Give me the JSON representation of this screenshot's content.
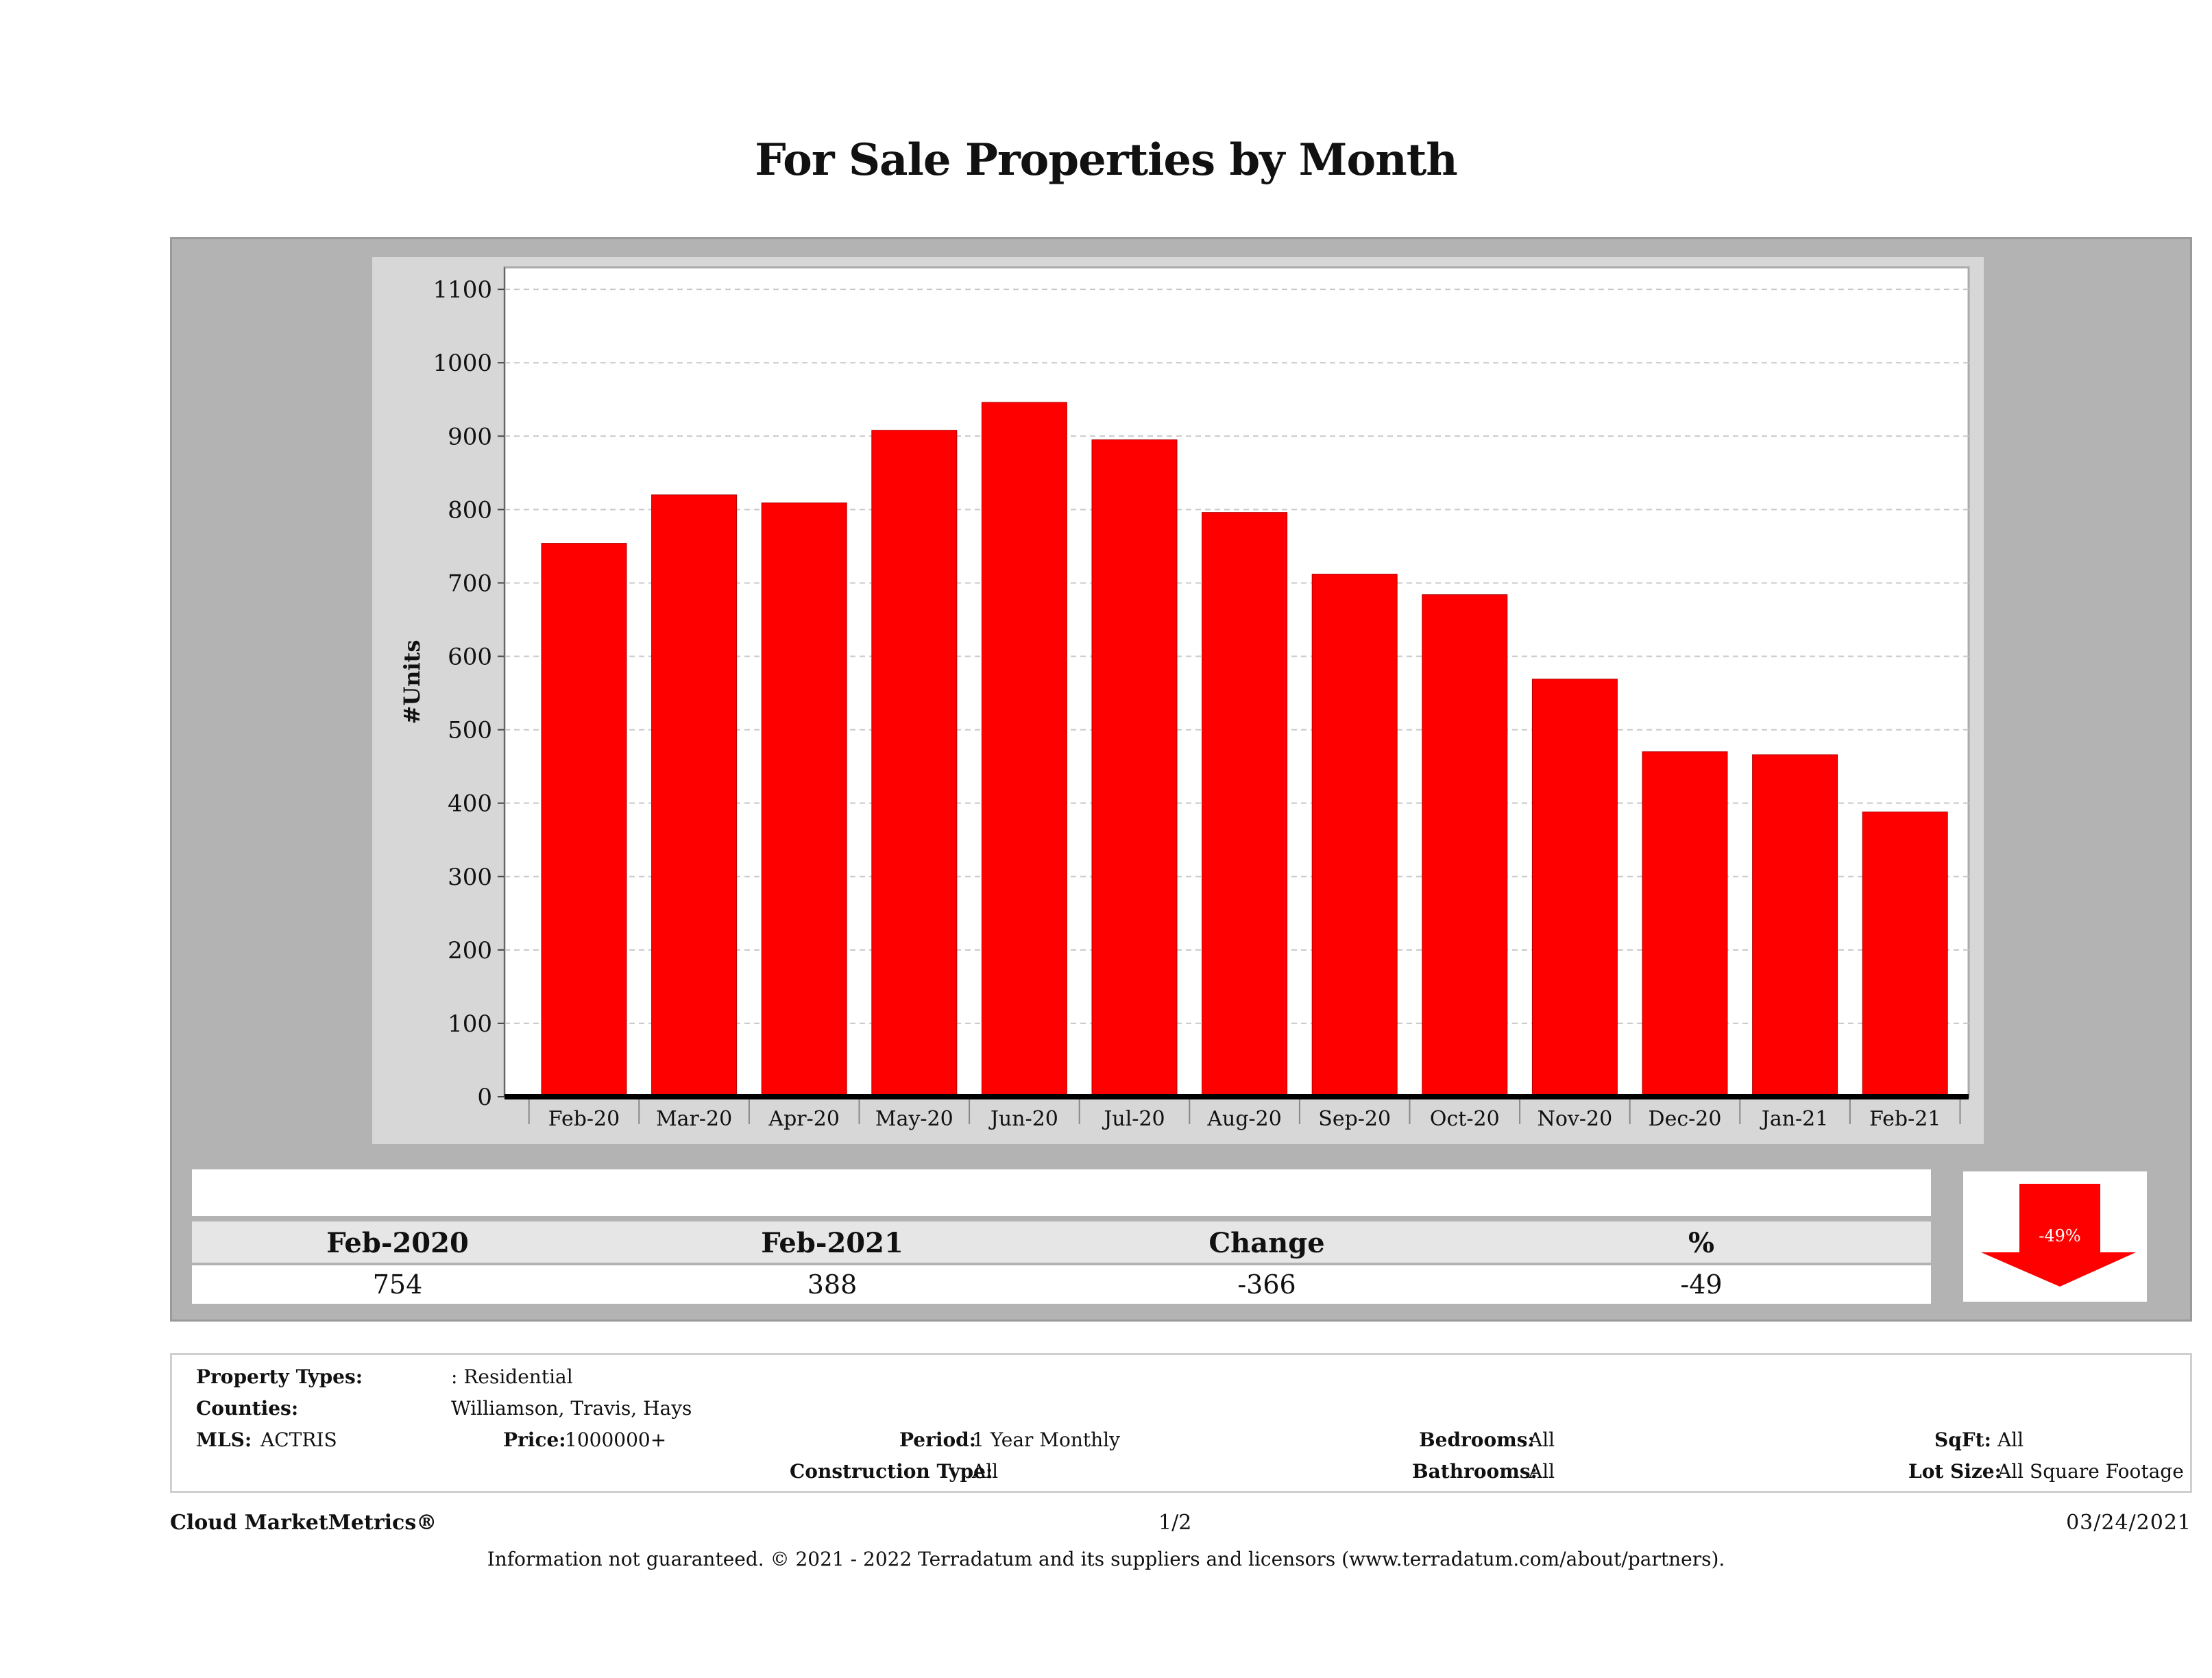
{
  "title": "For Sale Properties by Month",
  "chart_data": {
    "type": "bar",
    "categories": [
      "Feb-20",
      "Mar-20",
      "Apr-20",
      "May-20",
      "Jun-20",
      "Jul-20",
      "Aug-20",
      "Sep-20",
      "Oct-20",
      "Nov-20",
      "Dec-20",
      "Jan-21",
      "Feb-21"
    ],
    "values": [
      754,
      820,
      809,
      908,
      946,
      895,
      796,
      712,
      684,
      569,
      470,
      466,
      388
    ],
    "ylabel": "#Units",
    "xlabel": "",
    "ylim": [
      0,
      1130
    ],
    "yticks": [
      0,
      100,
      200,
      300,
      400,
      500,
      600,
      700,
      800,
      900,
      1000,
      1100
    ],
    "grid": true,
    "bar_color": "#ff0000"
  },
  "summary": {
    "headers": [
      "Feb-2020",
      "Feb-2021",
      "Change",
      "%"
    ],
    "values": [
      "754",
      "388",
      "-366",
      "-49"
    ],
    "arrow_label": "-49%",
    "arrow_color": "#ff0000"
  },
  "details": {
    "property_types_label": "Property Types:",
    "property_types_value": ": Residential",
    "counties_label": "Counties:",
    "counties_value": "Williamson, Travis, Hays",
    "mls_label": "MLS:",
    "mls_value": "ACTRIS",
    "price_label": "Price:",
    "price_value": "1000000+",
    "period_label": "Period:",
    "period_value": "1 Year Monthly",
    "construction_label": "Construction Type:",
    "construction_value": "All",
    "bedrooms_label": "Bedrooms:",
    "bedrooms_value": "All",
    "bathrooms_label": "Bathrooms:",
    "bathrooms_value": "All",
    "sqft_label": "SqFt:",
    "sqft_value": "All",
    "lotsize_label": "Lot Size:",
    "lotsize_value": "All Square Footage"
  },
  "footer": {
    "brand": "Cloud MarketMetrics®",
    "page": "1/2",
    "date": "03/24/2021",
    "disclaimer": "Information not guaranteed. © 2021 - 2022 Terradatum and its suppliers and licensors (www.terradatum.com/about/partners)."
  }
}
